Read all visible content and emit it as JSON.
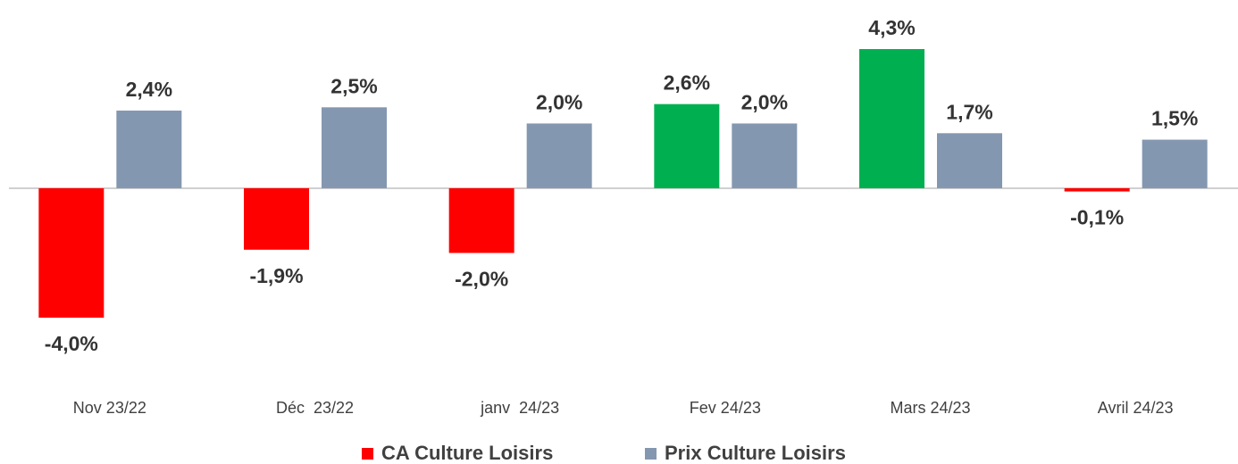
{
  "chart_data": {
    "type": "bar",
    "categories": [
      "Nov 23/22",
      "Déc  23/22",
      "janv  24/23",
      "Fev 24/23",
      "Mars 24/23",
      "Avril 24/23"
    ],
    "series": [
      {
        "name": "CA Culture Loisirs",
        "color": "#ff0000",
        "colors": [
          "#ff0000",
          "#ff0000",
          "#ff0000",
          "#00b050",
          "#00b050",
          "#ff0000"
        ],
        "values": [
          -4.0,
          -1.9,
          -2.0,
          2.6,
          4.3,
          -0.1
        ],
        "value_labels": [
          "-4,0%",
          "-1,9%",
          "-2,0%",
          "2,6%",
          "4,3%",
          "-0,1%"
        ]
      },
      {
        "name": "Prix Culture Loisirs",
        "color": "#8497b0",
        "values": [
          2.4,
          2.5,
          2.0,
          2.0,
          1.7,
          1.5
        ],
        "value_labels": [
          "2,4%",
          "2,5%",
          "2,0%",
          "2,0%",
          "1,7%",
          "1,5%"
        ]
      }
    ],
    "legend": "bottom"
  }
}
